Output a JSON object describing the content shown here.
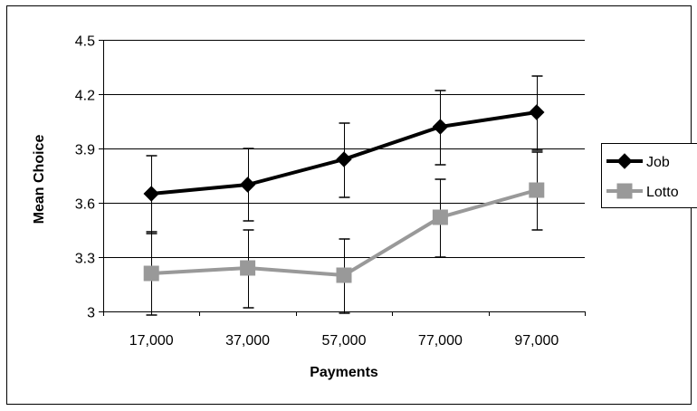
{
  "chart_data": {
    "type": "line",
    "title": "",
    "xlabel": "Payments",
    "ylabel": "Mean Choice",
    "categories": [
      "17,000",
      "37,000",
      "57,000",
      "77,000",
      "97,000"
    ],
    "ylim": [
      3,
      4.5
    ],
    "yticks": [
      "3",
      "3.3",
      "3.6",
      "3.9",
      "4.2",
      "4.5"
    ],
    "ytick_values": [
      3,
      3.3,
      3.6,
      3.9,
      4.2,
      4.5
    ],
    "grid": "horizontal",
    "legend_position": "right",
    "series": [
      {
        "name": "Job",
        "values": [
          3.65,
          3.7,
          3.84,
          4.02,
          4.1
        ],
        "error_low": [
          3.43,
          3.5,
          3.63,
          3.81,
          3.89
        ],
        "error_high": [
          3.86,
          3.9,
          4.04,
          4.22,
          4.3
        ],
        "color": "#000000",
        "marker": "diamond"
      },
      {
        "name": "Lotto",
        "values": [
          3.21,
          3.24,
          3.2,
          3.52,
          3.67
        ],
        "error_low": [
          2.98,
          3.02,
          2.99,
          3.3,
          3.45
        ],
        "error_high": [
          3.44,
          3.45,
          3.4,
          3.73,
          3.88
        ],
        "color": "#999999",
        "marker": "square"
      }
    ]
  }
}
